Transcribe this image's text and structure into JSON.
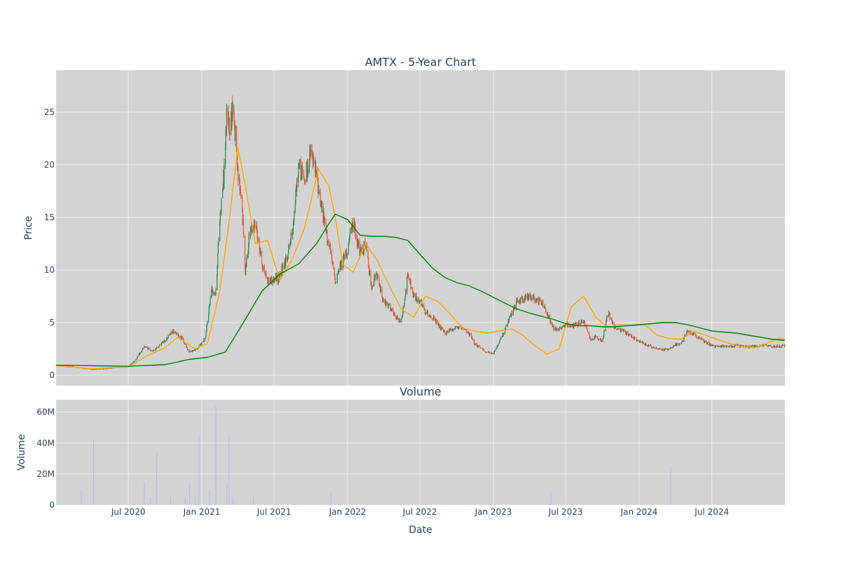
{
  "chart_data": [
    {
      "type": "candlestick",
      "title": "AMTX - 5-Year Chart",
      "xlabel": "",
      "ylabel": "Price",
      "ylim": [
        -1,
        29
      ],
      "yticks": [
        0,
        5,
        10,
        15,
        20,
        25
      ],
      "grid": true,
      "x_range": [
        "2020-01-02",
        "2024-12-31"
      ],
      "x_ticks": [
        {
          "date": "2020-07-01",
          "label": ""
        },
        {
          "date": "2021-01-01",
          "label": ""
        },
        {
          "date": "2021-07-01",
          "label": ""
        },
        {
          "date": "2022-01-01",
          "label": ""
        },
        {
          "date": "2022-07-01",
          "label": ""
        },
        {
          "date": "2023-01-01",
          "label": ""
        },
        {
          "date": "2023-07-01",
          "label": ""
        },
        {
          "date": "2024-01-01",
          "label": ""
        },
        {
          "date": "2024-07-01",
          "label": ""
        }
      ],
      "colors": {
        "up": "#2e8b57",
        "down": "#ef553b",
        "ma_short": "#ffa500",
        "ma_long": "#008000",
        "plot_bg": "#d3d3d3",
        "grid": "#ebebeb"
      },
      "close_series": {
        "x": [
          "2020-01-02",
          "2020-02-03",
          "2020-03-02",
          "2020-04-01",
          "2020-05-01",
          "2020-06-01",
          "2020-07-01",
          "2020-07-20",
          "2020-08-10",
          "2020-09-01",
          "2020-10-01",
          "2020-10-20",
          "2020-11-10",
          "2020-12-01",
          "2020-12-20",
          "2021-01-10",
          "2021-01-25",
          "2021-02-05",
          "2021-02-15",
          "2021-02-25",
          "2021-03-05",
          "2021-03-12",
          "2021-03-20",
          "2021-04-01",
          "2021-04-10",
          "2021-04-20",
          "2021-05-01",
          "2021-05-15",
          "2021-06-01",
          "2021-06-15",
          "2021-07-01",
          "2021-07-15",
          "2021-08-01",
          "2021-08-15",
          "2021-09-01",
          "2021-09-15",
          "2021-10-01",
          "2021-10-15",
          "2021-11-01",
          "2021-11-15",
          "2021-12-01",
          "2021-12-15",
          "2022-01-01",
          "2022-01-15",
          "2022-02-01",
          "2022-02-15",
          "2022-03-01",
          "2022-03-15",
          "2022-04-01",
          "2022-04-15",
          "2022-05-01",
          "2022-05-15",
          "2022-06-01",
          "2022-06-15",
          "2022-07-01",
          "2022-07-15",
          "2022-08-01",
          "2022-08-15",
          "2022-09-01",
          "2022-09-15",
          "2022-10-01",
          "2022-10-15",
          "2022-11-01",
          "2022-11-15",
          "2022-12-01",
          "2022-12-15",
          "2023-01-01",
          "2023-02-01",
          "2023-03-01",
          "2023-04-01",
          "2023-05-01",
          "2023-05-20",
          "2023-06-01",
          "2023-06-15",
          "2023-07-01",
          "2023-07-15",
          "2023-08-01",
          "2023-08-15",
          "2023-09-01",
          "2023-09-15",
          "2023-10-01",
          "2023-10-15",
          "2023-11-01",
          "2023-12-01",
          "2023-12-15",
          "2024-01-01",
          "2024-01-15",
          "2024-02-01",
          "2024-03-01",
          "2024-03-15",
          "2024-04-01",
          "2024-04-15",
          "2024-05-01",
          "2024-06-01",
          "2024-07-01",
          "2024-07-15",
          "2024-08-01",
          "2024-09-01",
          "2024-10-01",
          "2024-11-01",
          "2024-11-10",
          "2024-12-01",
          "2024-12-31"
        ],
        "close": [
          0.9,
          0.85,
          0.7,
          0.55,
          0.6,
          0.75,
          0.8,
          1.5,
          2.7,
          2.3,
          3.3,
          4.2,
          3.6,
          2.2,
          2.5,
          3.5,
          8.2,
          7.8,
          15.0,
          19.0,
          25.0,
          23.5,
          26.0,
          19.0,
          17.0,
          10.0,
          13.5,
          14.5,
          10.5,
          9.0,
          9.0,
          9.5,
          11.0,
          13.5,
          20.0,
          18.5,
          21.0,
          19.0,
          15.0,
          12.5,
          9.0,
          10.5,
          12.0,
          14.5,
          11.5,
          12.5,
          8.5,
          9.5,
          7.0,
          6.5,
          5.5,
          5.0,
          9.5,
          7.5,
          7.0,
          6.0,
          5.5,
          4.8,
          4.0,
          4.3,
          4.6,
          4.4,
          4.0,
          3.0,
          2.5,
          2.2,
          2.0,
          4.5,
          7.0,
          7.5,
          7.0,
          5.5,
          4.5,
          4.4,
          4.8,
          4.7,
          4.9,
          5.2,
          3.4,
          3.7,
          3.2,
          6.0,
          4.5,
          4.0,
          3.6,
          3.2,
          3.0,
          2.7,
          2.4,
          2.5,
          2.9,
          3.0,
          4.2,
          3.5,
          2.8,
          2.7,
          2.75,
          2.8,
          2.7,
          2.8,
          2.9,
          2.7,
          2.8
        ]
      },
      "ma_short": {
        "x": [
          "2020-01-02",
          "2020-04-01",
          "2020-07-01",
          "2020-08-15",
          "2020-10-01",
          "2020-11-01",
          "2020-12-15",
          "2021-01-15",
          "2021-02-15",
          "2021-03-10",
          "2021-04-01",
          "2021-04-20",
          "2021-05-15",
          "2021-06-15",
          "2021-07-15",
          "2021-08-15",
          "2021-09-15",
          "2021-10-20",
          "2021-11-15",
          "2021-12-01",
          "2021-12-20",
          "2022-01-15",
          "2022-02-15",
          "2022-03-15",
          "2022-04-15",
          "2022-05-15",
          "2022-06-15",
          "2022-07-15",
          "2022-08-15",
          "2022-09-15",
          "2022-10-15",
          "2022-11-15",
          "2022-12-15",
          "2023-01-15",
          "2023-02-15",
          "2023-03-15",
          "2023-04-15",
          "2023-05-15",
          "2023-06-15",
          "2023-07-15",
          "2023-08-15",
          "2023-09-15",
          "2023-10-15",
          "2023-11-15",
          "2023-12-15",
          "2024-01-15",
          "2024-02-15",
          "2024-03-15",
          "2024-04-15",
          "2024-05-15",
          "2024-06-15",
          "2024-07-15",
          "2024-08-15",
          "2024-09-15",
          "2024-10-15",
          "2024-11-15",
          "2024-12-15",
          "2024-12-31"
        ],
        "values": [
          0.9,
          0.6,
          0.8,
          1.8,
          2.6,
          3.6,
          2.5,
          3.0,
          8.0,
          14.5,
          21.7,
          18.0,
          12.5,
          12.8,
          9.0,
          11.0,
          14.0,
          19.6,
          18.0,
          15.0,
          10.5,
          9.8,
          12.5,
          11.0,
          8.5,
          6.3,
          5.5,
          7.5,
          7.0,
          5.8,
          4.5,
          4.2,
          4.0,
          4.2,
          4.4,
          3.8,
          2.8,
          2.0,
          2.5,
          6.5,
          7.5,
          5.5,
          4.5,
          4.8,
          4.7,
          4.8,
          3.8,
          3.5,
          3.4,
          4.2,
          3.8,
          3.4,
          3.0,
          2.7,
          2.6,
          3.0,
          3.5,
          3.4
        ]
      },
      "ma_long": {
        "x": [
          "2020-01-02",
          "2020-04-01",
          "2020-07-01",
          "2020-10-01",
          "2020-12-01",
          "2021-01-15",
          "2021-03-01",
          "2021-04-15",
          "2021-06-01",
          "2021-07-15",
          "2021-09-01",
          "2021-10-15",
          "2021-11-15",
          "2021-12-01",
          "2022-01-01",
          "2022-02-01",
          "2022-03-01",
          "2022-04-01",
          "2022-05-01",
          "2022-06-01",
          "2022-07-01",
          "2022-08-01",
          "2022-09-01",
          "2022-10-01",
          "2022-11-01",
          "2022-12-01",
          "2023-01-01",
          "2023-02-01",
          "2023-03-01",
          "2023-04-01",
          "2023-05-01",
          "2023-06-01",
          "2023-07-01",
          "2023-08-01",
          "2023-09-01",
          "2023-10-01",
          "2023-11-01",
          "2023-12-01",
          "2024-01-01",
          "2024-02-01",
          "2024-03-01",
          "2024-04-01",
          "2024-05-01",
          "2024-06-01",
          "2024-07-01",
          "2024-08-01",
          "2024-09-01",
          "2024-10-01",
          "2024-11-01",
          "2024-12-01",
          "2024-12-31"
        ],
        "values": [
          0.95,
          0.9,
          0.85,
          1.0,
          1.5,
          1.7,
          2.2,
          5.0,
          8.0,
          9.6,
          10.6,
          12.5,
          14.4,
          15.3,
          14.8,
          13.3,
          13.2,
          13.2,
          13.1,
          12.8,
          11.5,
          10.2,
          9.3,
          8.8,
          8.5,
          8.0,
          7.4,
          6.8,
          6.3,
          5.9,
          5.6,
          5.3,
          4.9,
          4.7,
          4.7,
          4.6,
          4.6,
          4.7,
          4.8,
          4.9,
          5.0,
          5.0,
          4.8,
          4.5,
          4.2,
          4.1,
          4.0,
          3.8,
          3.6,
          3.4,
          3.3
        ]
      }
    },
    {
      "type": "bar",
      "title": "Volume",
      "xlabel": "Date",
      "ylabel": "Volume",
      "ylim": [
        0,
        68
      ],
      "yticks": [
        {
          "value": 0,
          "label": "0"
        },
        {
          "value": 20,
          "label": "20M"
        },
        {
          "value": 40,
          "label": "40M"
        },
        {
          "value": 60,
          "label": "60M"
        }
      ],
      "unit": "M shares",
      "bar_color": "#bcbcf0",
      "x_tick_labels": [
        {
          "date": "2020-07-01",
          "label": "Jul 2020"
        },
        {
          "date": "2021-01-01",
          "label": "Jan 2021"
        },
        {
          "date": "2021-07-01",
          "label": "Jul 2021"
        },
        {
          "date": "2022-01-01",
          "label": "Jan 2022"
        },
        {
          "date": "2022-07-01",
          "label": "Jul 2022"
        },
        {
          "date": "2023-01-01",
          "label": "Jan 2023"
        },
        {
          "date": "2023-07-01",
          "label": "Jul 2023"
        },
        {
          "date": "2024-01-01",
          "label": "Jan 2024"
        },
        {
          "date": "2024-07-01",
          "label": "Jul 2024"
        }
      ],
      "spikes": [
        {
          "date": "2020-03-05",
          "value": 10
        },
        {
          "date": "2020-04-05",
          "value": 42
        },
        {
          "date": "2020-08-10",
          "value": 15
        },
        {
          "date": "2020-08-25",
          "value": 5
        },
        {
          "date": "2020-09-10",
          "value": 34
        },
        {
          "date": "2020-10-15",
          "value": 5
        },
        {
          "date": "2020-11-20",
          "value": 5
        },
        {
          "date": "2020-12-01",
          "value": 15
        },
        {
          "date": "2020-12-15",
          "value": 6
        },
        {
          "date": "2020-12-25",
          "value": 45
        },
        {
          "date": "2021-01-20",
          "value": 10
        },
        {
          "date": "2021-02-05",
          "value": 64
        },
        {
          "date": "2021-03-05",
          "value": 15
        },
        {
          "date": "2021-03-10",
          "value": 46
        },
        {
          "date": "2021-03-20",
          "value": 5
        },
        {
          "date": "2021-05-10",
          "value": 5
        },
        {
          "date": "2021-11-20",
          "value": 7
        },
        {
          "date": "2023-05-25",
          "value": 8
        },
        {
          "date": "2024-03-20",
          "value": 25
        }
      ]
    }
  ]
}
